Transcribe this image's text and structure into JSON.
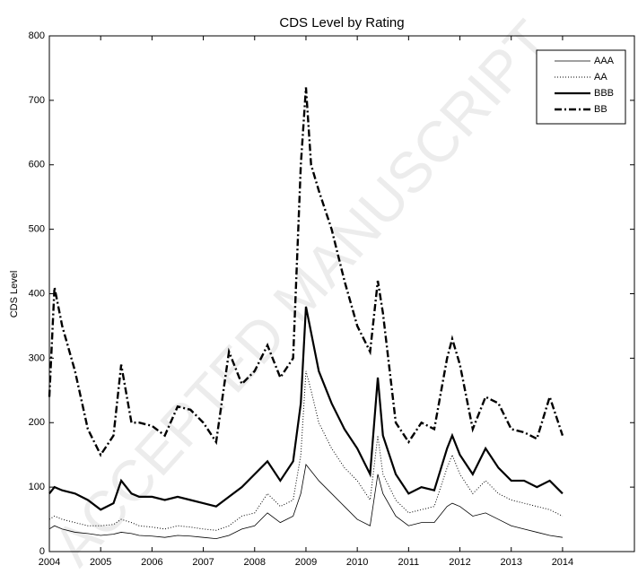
{
  "chart_data": {
    "type": "line",
    "title": "CDS Level by Rating",
    "y_label": "CDS Level",
    "watermark": "ACCEPTED MANUSCRIPT",
    "x": [
      2004,
      2004.1,
      2004.25,
      2004.5,
      2004.75,
      2005,
      2005.25,
      2005.4,
      2005.6,
      2005.75,
      2006,
      2006.25,
      2006.5,
      2006.75,
      2007,
      2007.25,
      2007.5,
      2007.75,
      2008,
      2008.25,
      2008.5,
      2008.75,
      2008.9,
      2009,
      2009.1,
      2009.25,
      2009.5,
      2009.75,
      2010,
      2010.25,
      2010.4,
      2010.5,
      2010.75,
      2011,
      2011.25,
      2011.5,
      2011.75,
      2011.85,
      2012,
      2012.25,
      2012.5,
      2012.75,
      2013,
      2013.25,
      2013.5,
      2013.75,
      2014
    ],
    "series": [
      {
        "name": "AAA",
        "color": "#000000",
        "linestyle": "solid",
        "width": 0.8,
        "values": [
          35,
          40,
          35,
          30,
          28,
          25,
          27,
          30,
          28,
          25,
          24,
          22,
          25,
          24,
          22,
          20,
          25,
          35,
          40,
          60,
          45,
          55,
          90,
          135,
          125,
          110,
          90,
          70,
          50,
          40,
          120,
          90,
          55,
          40,
          45,
          45,
          70,
          75,
          70,
          55,
          60,
          50,
          40,
          35,
          30,
          25,
          22
        ]
      },
      {
        "name": "AA",
        "color": "#000000",
        "linestyle": "dotted",
        "width": 1,
        "values": [
          50,
          55,
          50,
          45,
          40,
          40,
          42,
          50,
          45,
          40,
          38,
          35,
          40,
          38,
          35,
          33,
          40,
          55,
          60,
          90,
          70,
          80,
          150,
          280,
          250,
          200,
          160,
          130,
          110,
          80,
          180,
          120,
          80,
          60,
          65,
          70,
          130,
          150,
          120,
          90,
          110,
          90,
          80,
          75,
          70,
          65,
          55
        ]
      },
      {
        "name": "BBB",
        "color": "#000000",
        "linestyle": "solid",
        "width": 2.2,
        "values": [
          90,
          100,
          95,
          90,
          80,
          65,
          75,
          110,
          90,
          85,
          85,
          80,
          85,
          80,
          75,
          70,
          85,
          100,
          120,
          140,
          110,
          140,
          230,
          380,
          340,
          280,
          230,
          190,
          160,
          120,
          270,
          180,
          120,
          90,
          100,
          95,
          160,
          180,
          150,
          120,
          160,
          130,
          110,
          110,
          100,
          110,
          90
        ]
      },
      {
        "name": "BB",
        "color": "#000000",
        "linestyle": "dashdot",
        "width": 2.4,
        "values": [
          240,
          410,
          350,
          280,
          190,
          150,
          180,
          290,
          200,
          200,
          195,
          180,
          225,
          220,
          200,
          170,
          310,
          260,
          280,
          320,
          270,
          300,
          600,
          720,
          600,
          560,
          500,
          420,
          350,
          310,
          420,
          370,
          200,
          170,
          200,
          190,
          300,
          330,
          290,
          190,
          240,
          230,
          190,
          185,
          175,
          240,
          180
        ]
      }
    ],
    "xlim": [
      2004,
      2015.4
    ],
    "xticks": [
      2004,
      2005,
      2006,
      2007,
      2008,
      2009,
      2010,
      2011,
      2012,
      2013,
      2014
    ],
    "ylim": [
      0,
      800
    ],
    "yticks": [
      0,
      100,
      200,
      300,
      400,
      500,
      600,
      700,
      800
    ],
    "legend": "upper right",
    "grid": false
  }
}
